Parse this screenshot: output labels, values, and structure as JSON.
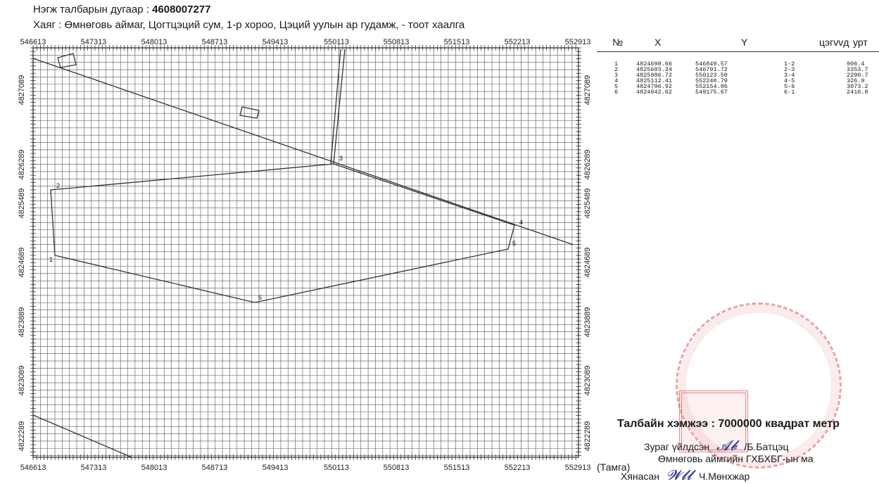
{
  "header": {
    "parcel_label": "Нэгж талбарын дугаар :",
    "parcel_number": "4608007277",
    "address": "Хаяг : Өмнөговь аймаг, Цогтцэций сум, 1-р хороо, Цэций уулын ар гудамж, - тоот хаалга"
  },
  "map": {
    "x_ticks": [
      "546613",
      "547313",
      "548013",
      "548713",
      "549413",
      "550113",
      "550813",
      "551513",
      "552213",
      "552913"
    ],
    "y_ticks": [
      "4827089",
      "4826289",
      "4825489",
      "4824689",
      "4823889",
      "4823089",
      "4822289"
    ],
    "vertex_labels": [
      "1",
      "2",
      "3",
      "4",
      "5",
      "6"
    ]
  },
  "table": {
    "headers": {
      "no": "№",
      "x": "X",
      "y": "Y",
      "seg": "цэгvvд",
      "len": "урт"
    },
    "rows": [
      {
        "no": "1",
        "x": "4824698.66",
        "y": "546849.57",
        "seg": "1-2",
        "len": "906.4"
      },
      {
        "no": "2",
        "x": "4825603.24",
        "y": "546791.72",
        "seg": "2-3",
        "len": "3353.7"
      },
      {
        "no": "3",
        "x": "4825986.72",
        "y": "550123.50",
        "seg": "3-4",
        "len": "2290.7"
      },
      {
        "no": "4",
        "x": "4825112.41",
        "y": "552240.79",
        "seg": "4-5",
        "len": "326.9"
      },
      {
        "no": "5",
        "x": "4824796.92",
        "y": "552154.86",
        "seg": "5-6",
        "len": "3073.2"
      },
      {
        "no": "6",
        "x": "4824042.62",
        "y": "549175.67",
        "seg": "6-1",
        "len": "2416.8"
      }
    ]
  },
  "footer": {
    "area": "Талбайн хэмжээ : 7000000 квадрат метр",
    "drawn_by_label": "Зураг үйлдсэн",
    "drawn_by_name": "/Б.Батцэц",
    "org": "Өмнөговь аймгийн ГХБХБГ-ын ма",
    "stamp_label": "(Тамга)",
    "approved_label": "Хянасан",
    "approved_name": "Ч.Мөнхжар"
  }
}
